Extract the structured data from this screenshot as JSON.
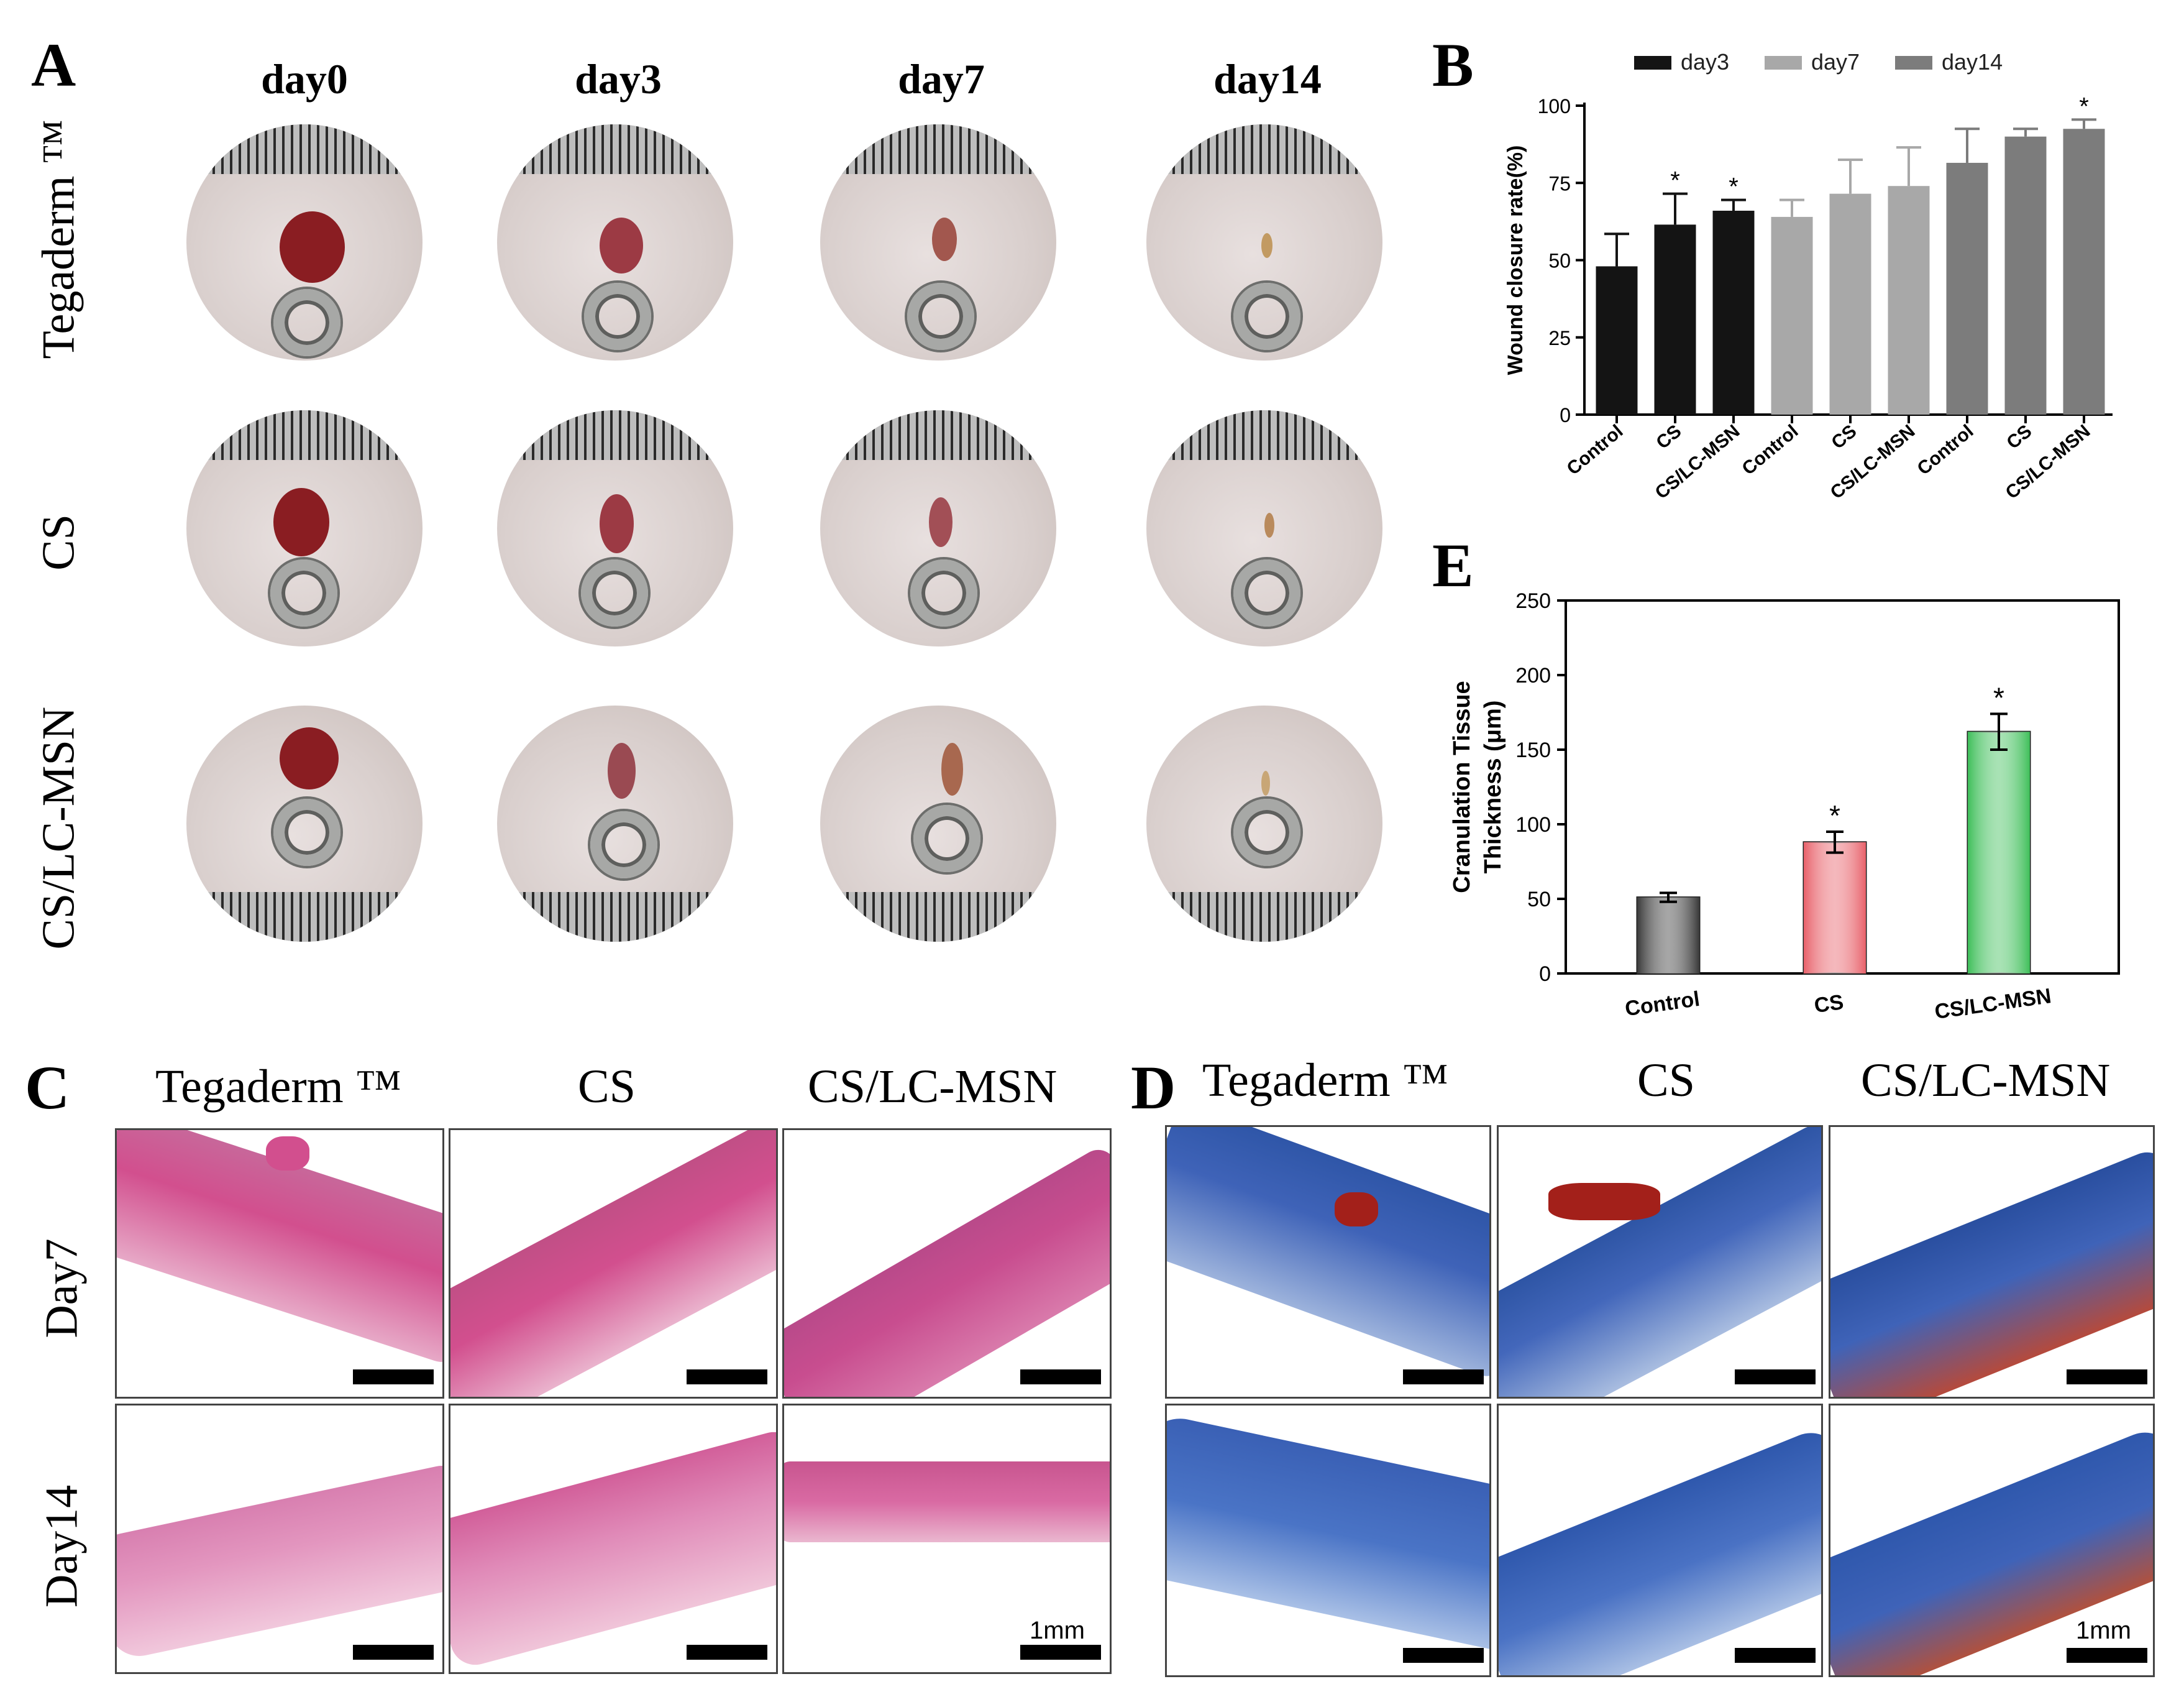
{
  "panels": {
    "a": "A",
    "b": "B",
    "c": "C",
    "d": "D",
    "e": "E"
  },
  "photo_grid": {
    "columns": [
      "day0",
      "day3",
      "day7",
      "day14"
    ],
    "rows": [
      "Tegaderm ™",
      "CS",
      "CS/LC-MSN"
    ]
  },
  "histology": {
    "columns": [
      "Tegaderm ™",
      "CS",
      "CS/LC-MSN"
    ],
    "rows": [
      "Day7",
      "Day14"
    ],
    "scale_label": "1mm"
  },
  "colors": {
    "day3": "#141414",
    "day7": "#a8a8a8",
    "day14": "#7c7c7c",
    "control": "#3a3a3a",
    "cs": "#e8616a",
    "cslcmsn": "#3fbf5a",
    "he_stain": "#d24f8e",
    "masson_blue": "#3f63b8",
    "masson_red": "#a3201a"
  },
  "chart_data": [
    {
      "type": "bar",
      "panel": "B",
      "categories": [
        "Control",
        "CS",
        "CS/LC-MSN"
      ],
      "series": [
        {
          "name": "day3",
          "values": [
            48,
            61.5,
            66
          ],
          "errors": [
            10.5,
            10,
            3.5
          ],
          "sig": [
            "",
            "*",
            "*"
          ]
        },
        {
          "name": "day7",
          "values": [
            64,
            71.5,
            74
          ],
          "errors": [
            5.5,
            11,
            12.5
          ],
          "sig": [
            "",
            "",
            ""
          ]
        },
        {
          "name": "day14",
          "values": [
            81.5,
            90,
            92.5
          ],
          "errors": [
            11,
            2.5,
            3
          ],
          "sig": [
            "",
            "",
            "*"
          ]
        }
      ],
      "ylabel": "Wound closure rate(%)",
      "ylim": [
        0,
        100
      ],
      "yticks": [
        0,
        25,
        50,
        75,
        100
      ]
    },
    {
      "type": "bar",
      "panel": "E",
      "categories": [
        "Control",
        "CS",
        "CS/LC-MSN"
      ],
      "values": [
        51,
        88,
        162
      ],
      "errors": [
        3,
        7,
        12
      ],
      "sig": [
        "",
        "*",
        "*"
      ],
      "ylabel_line1": "Cranulation Tissue",
      "ylabel_line2": "Thickness (μm)",
      "ylim": [
        0,
        250
      ],
      "yticks": [
        0,
        50,
        100,
        150,
        200,
        250
      ]
    }
  ]
}
